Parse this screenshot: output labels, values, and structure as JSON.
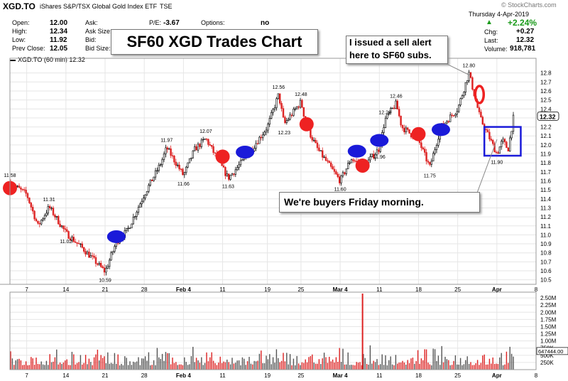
{
  "header": {
    "symbol": "XGD.TO",
    "description": "iShares S&P/TSX Global Gold Index ETF",
    "exchange": "TSE",
    "open_label": "Open:",
    "open": "12.00",
    "high_label": "High:",
    "high": "12.34",
    "low_label": "Low:",
    "low": "11.92",
    "prev_close_label": "Prev Close:",
    "prev_close": "12.05",
    "ask_label": "Ask:",
    "ask": "",
    "ask_size_label": "Ask Size:",
    "bid_label": "Bid:",
    "bid_size_label": "Bid Size:",
    "pe_label": "P/E:",
    "pe": "-3.67",
    "options_label": "Options:",
    "options": "no",
    "date": "Thursday  4-Apr-2019",
    "change_pct": "+2.24%",
    "chg_label": "Chg:",
    "chg": "+0.27",
    "last_label": "Last:",
    "last": "12.32",
    "volume_label": "Volume:",
    "volume": "918,781",
    "watermark": "© StockCharts.com",
    "legend_label": "XGD.TO (60 min) 12.32"
  },
  "annotations": {
    "title": "SF60 XGD Trades Chart",
    "sell_note_line1": "I issued a sell alert",
    "sell_note_line2": "here to SF60 subs.",
    "buy_note": "We're buyers Friday morning."
  },
  "colors": {
    "up": "#000000",
    "down": "#dd2222",
    "sell_marker": "#ee2222",
    "buy_marker": "#1a1ad9",
    "box": "#1a1ad9",
    "grid": "#e6e6e6",
    "up_arrow": "#1a9a1a"
  },
  "chart_data": [
    {
      "type": "candlestick",
      "series": [
        {
          "name": "XGD.TO (60 min)"
        }
      ],
      "y_axis": {
        "ylim": [
          10.45,
          12.9
        ],
        "ticks": [
          10.5,
          10.6,
          10.7,
          10.8,
          10.9,
          11.0,
          11.1,
          11.2,
          11.3,
          11.4,
          11.5,
          11.6,
          11.7,
          11.8,
          11.9,
          12.0,
          12.1,
          12.2,
          12.3,
          12.4,
          12.5,
          12.6,
          12.7,
          12.8
        ],
        "position": "right"
      },
      "x_axis": {
        "tick_labels": [
          "7",
          "14",
          "21",
          "28",
          "Feb 4",
          "11",
          "19",
          "25",
          "Mar 4",
          "11",
          "18",
          "25",
          "Apr",
          "8"
        ]
      },
      "grid": true,
      "last_value": 12.32,
      "price_path": [
        {
          "date": "2019-01-04",
          "close": 11.58
        },
        {
          "date": "2019-01-07",
          "close": 11.45
        },
        {
          "date": "2019-01-09",
          "close": 11.1
        },
        {
          "date": "2019-01-11",
          "close": 11.31
        },
        {
          "date": "2019-01-14",
          "close": 11.02
        },
        {
          "date": "2019-01-17",
          "close": 10.85
        },
        {
          "date": "2019-01-21",
          "close": 10.59
        },
        {
          "date": "2019-01-23",
          "close": 10.92
        },
        {
          "date": "2019-01-25",
          "close": 11.05
        },
        {
          "date": "2019-01-28",
          "close": 11.45
        },
        {
          "date": "2019-01-31",
          "close": 11.8
        },
        {
          "date": "2019-02-01",
          "close": 11.97
        },
        {
          "date": "2019-02-04",
          "close": 11.66
        },
        {
          "date": "2019-02-06",
          "close": 11.95
        },
        {
          "date": "2019-02-08",
          "close": 12.07
        },
        {
          "date": "2019-02-12",
          "close": 11.63
        },
        {
          "date": "2019-02-15",
          "close": 11.85
        },
        {
          "date": "2019-02-19",
          "close": 12.2
        },
        {
          "date": "2019-02-21",
          "close": 12.56
        },
        {
          "date": "2019-02-22",
          "close": 12.23
        },
        {
          "date": "2019-02-25",
          "close": 12.48
        },
        {
          "date": "2019-02-26",
          "close": 12.2
        },
        {
          "date": "2019-02-28",
          "close": 11.95
        },
        {
          "date": "2019-03-04",
          "close": 11.6
        },
        {
          "date": "2019-03-06",
          "close": 11.85
        },
        {
          "date": "2019-03-08",
          "close": 11.75
        },
        {
          "date": "2019-03-11",
          "close": 11.96
        },
        {
          "date": "2019-03-12",
          "close": 12.28
        },
        {
          "date": "2019-03-14",
          "close": 12.46
        },
        {
          "date": "2019-03-15",
          "close": 12.2
        },
        {
          "date": "2019-03-18",
          "close": 12.05
        },
        {
          "date": "2019-03-20",
          "close": 11.75
        },
        {
          "date": "2019-03-22",
          "close": 12.2
        },
        {
          "date": "2019-03-25",
          "close": 12.4
        },
        {
          "date": "2019-03-27",
          "close": 12.8
        },
        {
          "date": "2019-03-28",
          "close": 12.55
        },
        {
          "date": "2019-03-29",
          "close": 12.3
        },
        {
          "date": "2019-04-01",
          "close": 11.9
        },
        {
          "date": "2019-04-02",
          "close": 12.05
        },
        {
          "date": "2019-04-03",
          "close": 11.95
        },
        {
          "date": "2019-04-04",
          "close": 12.32
        }
      ],
      "price_labels": [
        {
          "date": "2019-01-04",
          "value": 11.58
        },
        {
          "date": "2019-01-11",
          "value": 11.31
        },
        {
          "date": "2019-01-14",
          "value": 11.02
        },
        {
          "date": "2019-01-21",
          "value": 10.59
        },
        {
          "date": "2019-02-01",
          "value": 11.97
        },
        {
          "date": "2019-02-04",
          "value": 11.66
        },
        {
          "date": "2019-02-08",
          "value": 12.07
        },
        {
          "date": "2019-02-12",
          "value": 11.63
        },
        {
          "date": "2019-02-21",
          "value": 12.56
        },
        {
          "date": "2019-02-22",
          "value": 12.23
        },
        {
          "date": "2019-02-25",
          "value": 12.48
        },
        {
          "date": "2019-03-04",
          "value": 11.6
        },
        {
          "date": "2019-03-11",
          "value": 11.96
        },
        {
          "date": "2019-03-12",
          "value": 12.28
        },
        {
          "date": "2019-03-14",
          "value": 12.46
        },
        {
          "date": "2019-03-20",
          "value": 11.75
        },
        {
          "date": "2019-03-27",
          "value": 12.8
        },
        {
          "date": "2019-04-01",
          "value": 11.9
        }
      ],
      "trade_markers": [
        {
          "date": "2019-01-04",
          "value": 11.52,
          "kind": "sell"
        },
        {
          "date": "2019-01-23",
          "value": 10.98,
          "kind": "buy"
        },
        {
          "date": "2019-02-11",
          "value": 11.87,
          "kind": "sell"
        },
        {
          "date": "2019-02-15",
          "value": 11.92,
          "kind": "buy"
        },
        {
          "date": "2019-02-26",
          "value": 12.23,
          "kind": "sell"
        },
        {
          "date": "2019-03-07",
          "value": 11.93,
          "kind": "buy"
        },
        {
          "date": "2019-03-08",
          "value": 11.77,
          "kind": "sell"
        },
        {
          "date": "2019-03-11",
          "value": 12.05,
          "kind": "buy"
        },
        {
          "date": "2019-03-18",
          "value": 12.12,
          "kind": "sell"
        },
        {
          "date": "2019-03-22",
          "value": 12.17,
          "kind": "buy"
        },
        {
          "date": "2019-03-28",
          "value": 12.6,
          "kind": "sell-ring"
        }
      ],
      "buy_zone": {
        "x_from": "2019-03-29",
        "x_to": "2019-04-04",
        "y_from": 11.88,
        "y_to": 12.2
      }
    },
    {
      "type": "bar",
      "title": "Volume",
      "y_axis": {
        "ylim": [
          0,
          2700000
        ],
        "tick_labels": [
          "2.50M",
          "2.25M",
          "2.00M",
          "1.75M",
          "1.50M",
          "1.25M",
          "1.00M",
          "750K",
          "500K",
          "250K"
        ],
        "ticks": [
          2500000,
          2250000,
          2000000,
          1750000,
          1500000,
          1250000,
          1000000,
          750000,
          500000,
          250000
        ],
        "position": "right"
      },
      "last_value_label": "647444.00",
      "last_value": 647444,
      "spike": {
        "date": "2019-03-08",
        "value": 2650000
      }
    }
  ]
}
